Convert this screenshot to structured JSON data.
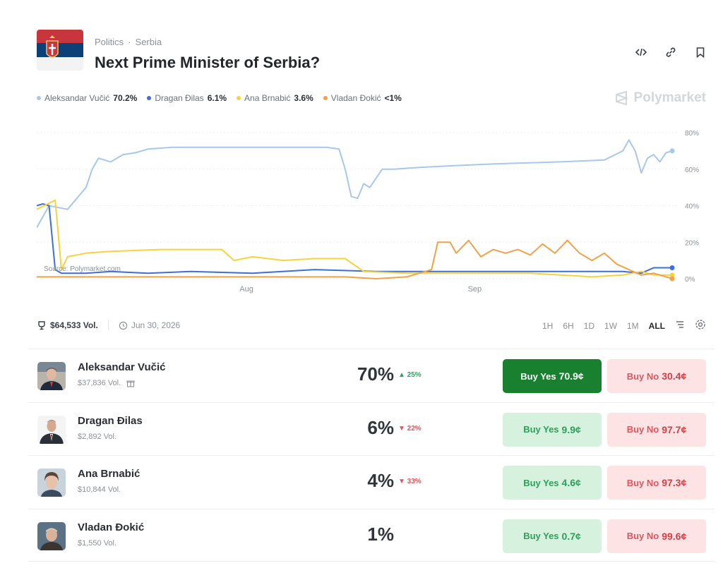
{
  "header": {
    "breadcrumb": [
      "Politics",
      "Serbia"
    ],
    "title": "Next Prime Minister of Serbia?",
    "icons": [
      "embed-icon",
      "link-icon",
      "bookmark-icon"
    ]
  },
  "legend": [
    {
      "name": "Aleksandar Vučić",
      "value": "70.2%",
      "color": "#a6c8ec"
    },
    {
      "name": "Dragan Đilas",
      "value": "6.1%",
      "color": "#3d6fd6"
    },
    {
      "name": "Ana Brnabić",
      "value": "3.6%",
      "color": "#f5d33f"
    },
    {
      "name": "Vladan Đokić",
      "value": "<1%",
      "color": "#f0a248"
    }
  ],
  "brand": "Polymarket",
  "chart_data": {
    "type": "line",
    "x_labels": [
      "Aug",
      "Sep"
    ],
    "y_ticks": [
      "80%",
      "60%",
      "40%",
      "20%",
      "0%"
    ],
    "ylim": [
      0,
      80
    ],
    "source": "Source: Polymarket.com",
    "series": [
      {
        "name": "Aleksandar Vučić",
        "color": "#a6c8ec",
        "values": [
          [
            0,
            28
          ],
          [
            2,
            40
          ],
          [
            5,
            38
          ],
          [
            8,
            50
          ],
          [
            9,
            60
          ],
          [
            10,
            66
          ],
          [
            12,
            64
          ],
          [
            14,
            68
          ],
          [
            16,
            69
          ],
          [
            18,
            71
          ],
          [
            22,
            72
          ],
          [
            30,
            72
          ],
          [
            42,
            72
          ],
          [
            47,
            72
          ],
          [
            49,
            71
          ],
          [
            50,
            60
          ],
          [
            51,
            45
          ],
          [
            52,
            44
          ],
          [
            53,
            52
          ],
          [
            54,
            50
          ],
          [
            56,
            60
          ],
          [
            58,
            60
          ],
          [
            62,
            61
          ],
          [
            68,
            62
          ],
          [
            75,
            63
          ],
          [
            85,
            64
          ],
          [
            92,
            65
          ],
          [
            95,
            70
          ],
          [
            96,
            76
          ],
          [
            97,
            70
          ],
          [
            98,
            58
          ],
          [
            99,
            66
          ],
          [
            100,
            68
          ],
          [
            101,
            64
          ],
          [
            102,
            69
          ],
          [
            103,
            70
          ]
        ]
      },
      {
        "name": "Dragan Đilas",
        "color": "#3d6fd6",
        "values": [
          [
            0,
            40
          ],
          [
            1,
            41
          ],
          [
            2,
            40
          ],
          [
            3,
            5
          ],
          [
            4,
            3
          ],
          [
            8,
            3
          ],
          [
            12,
            4
          ],
          [
            18,
            3
          ],
          [
            25,
            4
          ],
          [
            35,
            3
          ],
          [
            45,
            5
          ],
          [
            55,
            4
          ],
          [
            65,
            4
          ],
          [
            75,
            4
          ],
          [
            85,
            4
          ],
          [
            95,
            4
          ],
          [
            98,
            3
          ],
          [
            100,
            6
          ],
          [
            103,
            6
          ]
        ]
      },
      {
        "name": "Ana Brnabić",
        "color": "#f5d33f",
        "values": [
          [
            0,
            38
          ],
          [
            3,
            43
          ],
          [
            4,
            5
          ],
          [
            5,
            12
          ],
          [
            8,
            14
          ],
          [
            12,
            15
          ],
          [
            20,
            16
          ],
          [
            30,
            16
          ],
          [
            32,
            10
          ],
          [
            35,
            12
          ],
          [
            40,
            10
          ],
          [
            45,
            11
          ],
          [
            50,
            11
          ],
          [
            53,
            4
          ],
          [
            60,
            3
          ],
          [
            70,
            3
          ],
          [
            80,
            3
          ],
          [
            85,
            2
          ],
          [
            90,
            1
          ],
          [
            95,
            2
          ],
          [
            98,
            4
          ],
          [
            100,
            2
          ],
          [
            103,
            2
          ]
        ]
      },
      {
        "name": "Vladan Đokić",
        "color": "#f0a248",
        "values": [
          [
            0,
            1
          ],
          [
            40,
            1
          ],
          [
            50,
            1
          ],
          [
            55,
            0
          ],
          [
            60,
            1
          ],
          [
            64,
            5
          ],
          [
            65,
            20
          ],
          [
            67,
            20
          ],
          [
            68,
            14
          ],
          [
            70,
            21
          ],
          [
            72,
            12
          ],
          [
            74,
            16
          ],
          [
            76,
            14
          ],
          [
            78,
            16
          ],
          [
            80,
            13
          ],
          [
            82,
            19
          ],
          [
            84,
            14
          ],
          [
            86,
            21
          ],
          [
            88,
            14
          ],
          [
            90,
            10
          ],
          [
            92,
            14
          ],
          [
            94,
            8
          ],
          [
            96,
            5
          ],
          [
            98,
            2
          ],
          [
            100,
            3
          ],
          [
            103,
            0
          ]
        ]
      }
    ]
  },
  "stats": {
    "volume": "$64,533 Vol.",
    "date": "Jun 30, 2026"
  },
  "ranges": [
    "1H",
    "6H",
    "1D",
    "1W",
    "1M",
    "ALL"
  ],
  "active_range": "ALL",
  "outcomes": [
    {
      "name": "Aleksandar Vučić",
      "volume": "$37,836 Vol.",
      "percent": "70%",
      "change": "▲ 25%",
      "trend": "up",
      "yes_label": "Buy Yes",
      "yes_price": "70.9¢",
      "no_label": "Buy No",
      "no_price": "30.4¢"
    },
    {
      "name": "Dragan Đilas",
      "volume": "$2,892 Vol.",
      "percent": "6%",
      "change": "▼ 22%",
      "trend": "down",
      "yes_label": "Buy Yes",
      "yes_price": "9.9¢",
      "no_label": "Buy No",
      "no_price": "97.7¢"
    },
    {
      "name": "Ana Brnabić",
      "volume": "$10,844 Vol.",
      "percent": "4%",
      "change": "▼ 33%",
      "trend": "down",
      "yes_label": "Buy Yes",
      "yes_price": "4.6¢",
      "no_label": "Buy No",
      "no_price": "97.3¢"
    },
    {
      "name": "Vladan Đokić",
      "volume": "$1,550 Vol.",
      "percent": "1%",
      "change": "",
      "trend": "none",
      "yes_label": "Buy Yes",
      "yes_price": "0.7¢",
      "no_label": "Buy No",
      "no_price": "99.6¢"
    }
  ]
}
